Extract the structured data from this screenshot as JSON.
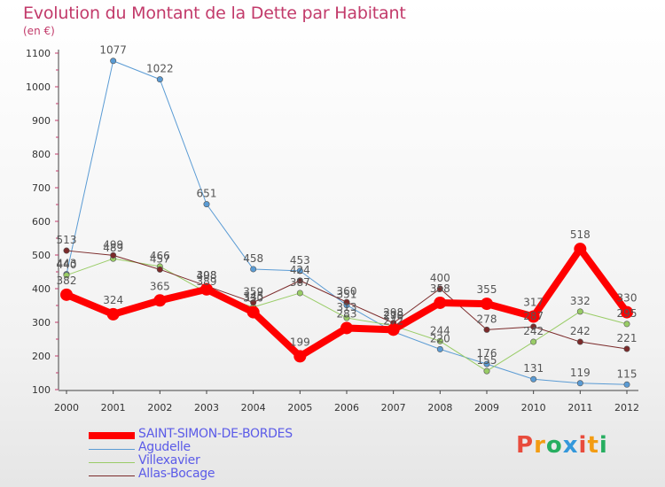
{
  "title": "Evolution du Montant de la Dette par Habitant",
  "subtitle": "(en €)",
  "logo": {
    "text": "Proxiti",
    "colors": [
      "#e84c3d",
      "#f39c12",
      "#27ae60",
      "#3498db",
      "#e84c3d",
      "#f39c12",
      "#27ae60"
    ]
  },
  "chart_data": {
    "type": "line",
    "title": "Evolution du Montant de la Dette par Habitant",
    "ylabel": "(en €)",
    "xlabel": "",
    "x": [
      "2000",
      "2001",
      "2002",
      "2003",
      "2004",
      "2005",
      "2006",
      "2007",
      "2008",
      "2009",
      "2010",
      "2011",
      "2012"
    ],
    "yticks": [
      "100",
      "200",
      "300",
      "400",
      "500",
      "600",
      "700",
      "800",
      "900",
      "1000",
      "1100"
    ],
    "ylim": [
      100,
      1100
    ],
    "grid": false,
    "legend_position": "bottom-left",
    "series": [
      {
        "name": "SAINT-SIMON-DE-BORDES",
        "color": "#ff0000",
        "width": 8,
        "values": [
          382,
          324,
          365,
          398,
          330,
          199,
          283,
          278,
          358,
          355,
          317,
          518,
          330
        ],
        "labels": [
          "382",
          "324",
          "365",
          "398",
          "330",
          "199",
          "283",
          "278",
          "358",
          "355",
          "317",
          "518",
          "330"
        ]
      },
      {
        "name": "Agudelle",
        "color": "#5a9bd4",
        "width": 1,
        "values": [
          443,
          1077,
          1022,
          651,
          458,
          453,
          351,
          272,
          220,
          176,
          131,
          119,
          115
        ],
        "labels": [
          "443",
          "1077",
          "1022",
          "651",
          "458",
          "453",
          "351",
          "272",
          "220",
          "176",
          "131",
          "119",
          "115"
        ]
      },
      {
        "name": "Villexavier",
        "color": "#99cc66",
        "width": 1,
        "values": [
          440,
          489,
          466,
          389,
          345,
          387,
          313,
          290,
          244,
          155,
          242,
          332,
          295
        ],
        "labels": [
          "440",
          "489",
          "466",
          "389",
          "345",
          "387",
          "313",
          "290",
          "244",
          "155",
          "242",
          "332",
          "295"
        ]
      },
      {
        "name": "Allas-Bocage",
        "color": "#7b2a2a",
        "width": 1,
        "values": [
          513,
          499,
          457,
          408,
          359,
          424,
          360,
          298,
          400,
          278,
          287,
          242,
          221
        ],
        "labels": [
          "513",
          "499",
          "457",
          "408",
          "359",
          "424",
          "360",
          "298",
          "400",
          "278",
          "287",
          "242",
          "221"
        ]
      }
    ]
  }
}
